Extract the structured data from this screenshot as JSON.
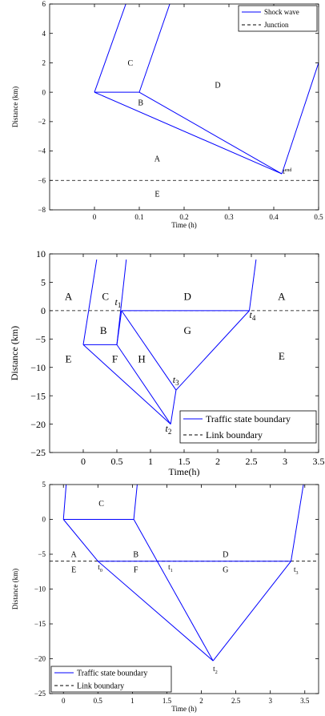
{
  "chart_data": [
    {
      "type": "line",
      "xlabel": "Time (h)",
      "ylabel": "Distance (km)",
      "xlim": [
        -0.1,
        0.5
      ],
      "ylim": [
        -8,
        6
      ],
      "xticks": [
        0,
        0.1,
        0.2,
        0.3,
        0.4,
        0.5
      ],
      "xtick_labels": [
        "0",
        "0.1",
        "0.2",
        "0.3",
        "0.4",
        "0.5"
      ],
      "yticks": [
        -8,
        -6,
        -4,
        -2,
        0,
        2,
        4,
        6
      ],
      "ytick_labels": [
        "−8",
        "−6",
        "−4",
        "−2",
        "0",
        "2",
        "4",
        "6"
      ],
      "legend_position": "top-right",
      "legend": [
        {
          "label": "Shock wave",
          "style": "solid",
          "color": "#0000ff"
        },
        {
          "label": "Junction",
          "style": "dashed",
          "color": "#000000"
        }
      ],
      "segments": [
        [
          [
            0,
            0
          ],
          [
            0.07,
            6
          ]
        ],
        [
          [
            0,
            0
          ],
          [
            0.1,
            0
          ]
        ],
        [
          [
            0.1,
            0
          ],
          [
            0.168,
            6
          ]
        ],
        [
          [
            0,
            0
          ],
          [
            0.418,
            -5.55
          ]
        ],
        [
          [
            0.1,
            0
          ],
          [
            0.418,
            -5.55
          ]
        ],
        [
          [
            0.418,
            -5.55
          ],
          [
            0.5,
            2
          ]
        ]
      ],
      "dashed_lines": [
        {
          "y": -6
        }
      ],
      "region_labels": [
        {
          "text": "C",
          "x": 0.08,
          "y": 2
        },
        {
          "text": "D",
          "x": 0.275,
          "y": 0.5
        },
        {
          "text": "B",
          "x": 0.103,
          "y": -0.7
        },
        {
          "text": "A",
          "x": 0.14,
          "y": -4.5
        },
        {
          "text": "E",
          "x": 0.14,
          "y": -6.9
        }
      ],
      "point_labels": [
        {
          "text": "t",
          "sub": "end",
          "x": 0.42,
          "y": -5.55
        }
      ]
    },
    {
      "type": "line",
      "xlabel": "Time(h)",
      "ylabel": "Distance (km)",
      "xlim": [
        -0.5,
        3.5
      ],
      "ylim": [
        -25,
        10
      ],
      "xticks": [
        0,
        0.5,
        1,
        1.5,
        2,
        2.5,
        3,
        3.5
      ],
      "xtick_labels": [
        "0",
        "0.5",
        "1",
        "1.5",
        "2",
        "2.5",
        "3",
        "3.5"
      ],
      "yticks": [
        -25,
        -20,
        -15,
        -10,
        -5,
        0,
        5,
        10
      ],
      "ytick_labels": [
        "−25",
        "−20",
        "−15",
        "−10",
        "−5",
        "0",
        "5",
        "10"
      ],
      "legend_position": "bottom-right",
      "legend": [
        {
          "label": "Traffic state boundary",
          "style": "solid",
          "color": "#0000ff"
        },
        {
          "label": "Link boundary",
          "style": "dashed",
          "color": "#000000"
        }
      ],
      "segments": [
        [
          [
            0.2,
            9
          ],
          [
            0,
            -6
          ]
        ],
        [
          [
            0,
            -6
          ],
          [
            0.5,
            -6
          ]
        ],
        [
          [
            0.5,
            -6
          ],
          [
            0.64,
            9
          ]
        ],
        [
          [
            0.5,
            -6
          ],
          [
            0.57,
            0
          ]
        ],
        [
          [
            0.57,
            0
          ],
          [
            2.47,
            0
          ]
        ],
        [
          [
            2.47,
            0
          ],
          [
            2.57,
            9
          ]
        ],
        [
          [
            0,
            -6
          ],
          [
            1.3,
            -20
          ]
        ],
        [
          [
            0.5,
            -6
          ],
          [
            1.3,
            -20
          ]
        ],
        [
          [
            1.3,
            -20
          ],
          [
            1.38,
            -14
          ]
        ],
        [
          [
            0.57,
            0
          ],
          [
            1.38,
            -14
          ]
        ],
        [
          [
            1.38,
            -14
          ],
          [
            2.47,
            0
          ]
        ]
      ],
      "dashed_lines": [
        {
          "y": 0
        }
      ],
      "region_labels": [
        {
          "text": "A",
          "x": -0.22,
          "y": 2.5
        },
        {
          "text": "C",
          "x": 0.33,
          "y": 2.5
        },
        {
          "text": "D",
          "x": 1.55,
          "y": 2.5
        },
        {
          "text": "A",
          "x": 2.95,
          "y": 2.5
        },
        {
          "text": "B",
          "x": 0.3,
          "y": -3.5
        },
        {
          "text": "G",
          "x": 1.55,
          "y": -3.5
        },
        {
          "text": "E",
          "x": -0.22,
          "y": -8.5
        },
        {
          "text": "F",
          "x": 0.47,
          "y": -8.5
        },
        {
          "text": "H",
          "x": 0.87,
          "y": -8.5
        },
        {
          "text": "E",
          "x": 2.95,
          "y": -8
        }
      ],
      "point_labels": [
        {
          "text": "t",
          "sub": "1",
          "x": 0.47,
          "y": 1
        },
        {
          "text": "t",
          "sub": "4",
          "x": 2.47,
          "y": -1.3
        },
        {
          "text": "t",
          "sub": "3",
          "x": 1.33,
          "y": -12.7
        },
        {
          "text": "t",
          "sub": "2",
          "x": 1.22,
          "y": -21.3
        }
      ]
    },
    {
      "type": "line",
      "xlabel": "Time (h)",
      "ylabel": "Distance (km)",
      "xlim": [
        -0.2,
        3.7
      ],
      "ylim": [
        -25,
        5
      ],
      "xticks": [
        0,
        0.5,
        1,
        1.5,
        2,
        2.5,
        3,
        3.5
      ],
      "xtick_labels": [
        "0",
        "0.5",
        "1",
        "1.5",
        "2",
        "2.5",
        "3",
        "3.5"
      ],
      "yticks": [
        -25,
        -20,
        -15,
        -10,
        -5,
        0,
        5
      ],
      "ytick_labels": [
        "−25",
        "−20",
        "−15",
        "−10",
        "−5",
        "0",
        "5"
      ],
      "legend_position": "bottom-left",
      "legend": [
        {
          "label": "Traffic state boundary",
          "style": "solid",
          "color": "#0000ff"
        },
        {
          "label": "Link boundary",
          "style": "dashed",
          "color": "#000000"
        }
      ],
      "segments": [
        [
          [
            0,
            0
          ],
          [
            0.04,
            5
          ]
        ],
        [
          [
            0,
            0
          ],
          [
            1.02,
            0
          ]
        ],
        [
          [
            1.02,
            0
          ],
          [
            1.07,
            5
          ]
        ],
        [
          [
            0,
            0
          ],
          [
            0.5,
            -6
          ]
        ],
        [
          [
            0.5,
            -6
          ],
          [
            3.3,
            -6
          ]
        ],
        [
          [
            0.5,
            -6
          ],
          [
            2.17,
            -20.3
          ]
        ],
        [
          [
            1.02,
            0
          ],
          [
            2.17,
            -20.3
          ]
        ],
        [
          [
            2.17,
            -20.3
          ],
          [
            3.3,
            -6
          ]
        ],
        [
          [
            3.3,
            -6
          ],
          [
            3.48,
            5
          ]
        ]
      ],
      "dashed_lines": [
        {
          "y": -6
        }
      ],
      "region_labels": [
        {
          "text": "C",
          "x": 0.55,
          "y": 2.3
        },
        {
          "text": "A",
          "x": 0.15,
          "y": -5
        },
        {
          "text": "B",
          "x": 1.05,
          "y": -5
        },
        {
          "text": "D",
          "x": 2.35,
          "y": -5
        },
        {
          "text": "E",
          "x": 0.15,
          "y": -7.2
        },
        {
          "text": "F",
          "x": 1.05,
          "y": -7.2
        },
        {
          "text": "G",
          "x": 2.35,
          "y": -7.2
        }
      ],
      "point_labels": [
        {
          "text": "t",
          "sub": "0",
          "x": 0.5,
          "y": -7.2
        },
        {
          "text": "t",
          "sub": "1",
          "x": 1.52,
          "y": -7.2
        },
        {
          "text": "t",
          "sub": "3",
          "x": 3.34,
          "y": -7.5
        },
        {
          "text": "t",
          "sub": "2",
          "x": 2.17,
          "y": -21.8
        }
      ]
    }
  ]
}
